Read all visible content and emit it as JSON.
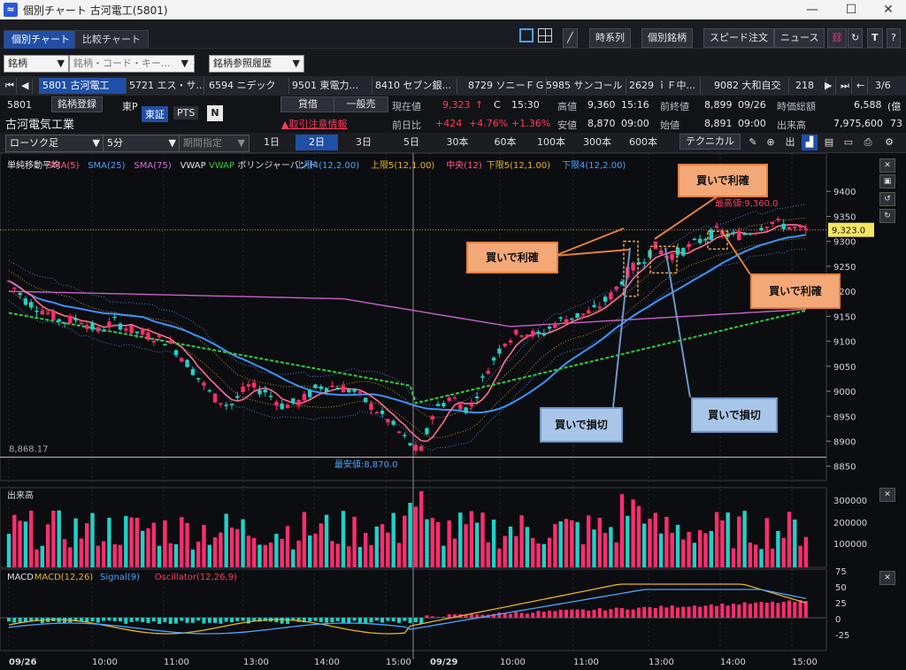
{
  "window": {
    "title": "個別チャート 古河電工(5801)",
    "app_icon": "≈"
  },
  "tabs": [
    {
      "label": "個別チャート",
      "active": true
    },
    {
      "label": "比較チャート",
      "active": false
    }
  ],
  "toolbar": {
    "buttons": [
      "時系列",
      "個別銘柄",
      "スピード注文",
      "ニュース"
    ]
  },
  "search": {
    "type_label": "銘柄",
    "placeholder": "銘柄・コード・キー...",
    "history_label": "銘柄参照履歴"
  },
  "stock_tabs": [
    "5801 古河電工",
    "5721 エス・サ...",
    "6594 ニデック",
    "9501 東電力...",
    "8410 セブン銀...",
    "8729 ソニーＦＧ",
    "5985 サンコール",
    "2629 ｉＦ中...",
    "9082 大和自交",
    "218"
  ],
  "page_indicator": "3/6",
  "stock": {
    "code": "5801",
    "name": "古河電気工業",
    "register_label": "銘柄登録",
    "market_prefix": "東P",
    "market_tokyo": "東証",
    "market_pts": "PTS",
    "lending_label": "貸借",
    "general_label": "一般売",
    "caution_label": "取引注意情報",
    "current_label": "現在値",
    "current": "9,323",
    "current_arrow": "↑",
    "current_flag": "C",
    "current_time": "15:30",
    "change_label": "前日比",
    "change": "+424",
    "change_pct": "+4.76%",
    "change_pct2": "+1.36%",
    "high_label": "高値",
    "high": "9,360",
    "high_time": "15:16",
    "low_label": "安値",
    "low": "8,870",
    "low_time": "09:00",
    "prev_close_label": "前終値",
    "prev_close": "8,899",
    "prev_close_date": "09/26",
    "open_label": "始値",
    "open": "8,891",
    "open_time": "09:00",
    "mcap_label": "時価総額",
    "mcap": "6,588",
    "mcap_unit": "(億",
    "volume_label": "出来高",
    "volume": "7,975,600",
    "volume_tail": "73"
  },
  "controls": {
    "chart_type": "ローソク足",
    "interval": "5分",
    "period": "期間指定",
    "periods": [
      "1日",
      "2日",
      "3日",
      "5日",
      "30本",
      "60本",
      "100本",
      "300本",
      "600本"
    ],
    "active_period": "2日",
    "technical": "テクニカル"
  },
  "legend": [
    {
      "text": "単純移動平均",
      "color": "#e0e0e0"
    },
    {
      "text": "SMA(5)",
      "color": "#ff5c8a"
    },
    {
      "text": "SMA(25)",
      "color": "#4aa3ff"
    },
    {
      "text": "SMA(75)",
      "color": "#d46bd8"
    },
    {
      "text": "VWAP",
      "color": "#e0e0e0"
    },
    {
      "text": "VWAP",
      "color": "#2ecc40"
    },
    {
      "text": "ボリンジャーバンド",
      "color": "#e0e0e0"
    },
    {
      "text": "上限4(12,2.00)",
      "color": "#4aa3ff"
    },
    {
      "text": "上限5(12,1.00)",
      "color": "#e6b422"
    },
    {
      "text": "中央(12)",
      "color": "#ff5c8a"
    },
    {
      "text": "下限5(12,1.00)",
      "color": "#e6b422"
    },
    {
      "text": "下限4(12,2.00)",
      "color": "#4aa3ff"
    }
  ],
  "price_axis": [
    "9400",
    "9350",
    "9300",
    "9250",
    "9200",
    "9150",
    "9100",
    "9050",
    "9000",
    "8950",
    "8900",
    "8850"
  ],
  "last_price_tag": "9,323.0",
  "high_marker": "最高値:9,360.0",
  "low_marker": "最安値:8,870.0",
  "ref_line_label": "8,868.17",
  "volume_panel": {
    "title": "出来高",
    "axis": [
      "300000",
      "200000",
      "100000"
    ]
  },
  "macd_panel": {
    "legend": [
      {
        "text": "MACD",
        "color": "#e0e0e0"
      },
      {
        "text": "MACD(12,26)",
        "color": "#e6b422"
      },
      {
        "text": "Signal(9)",
        "color": "#4aa3ff"
      },
      {
        "text": "Oscillator(12,26,9)",
        "color": "#ff3b5c"
      }
    ],
    "axis": [
      "75",
      "50",
      "25",
      "0",
      "-25"
    ]
  },
  "time_axis": [
    "09/26",
    "10:00",
    "11:00",
    "13:00",
    "14:00",
    "15:00",
    "09/29",
    "10:00",
    "11:00",
    "13:00",
    "14:00",
    "15:00"
  ],
  "annotations": [
    {
      "text": "買いで利確",
      "style": "orange"
    },
    {
      "text": "買いで利確",
      "style": "orange"
    },
    {
      "text": "買いで利確",
      "style": "orange"
    },
    {
      "text": "買いで損切",
      "style": "blue"
    },
    {
      "text": "買いで損切",
      "style": "blue"
    }
  ],
  "colors": {
    "up": "#ff2d6f",
    "down": "#22d0c8",
    "accent": "#1f4fa6"
  }
}
